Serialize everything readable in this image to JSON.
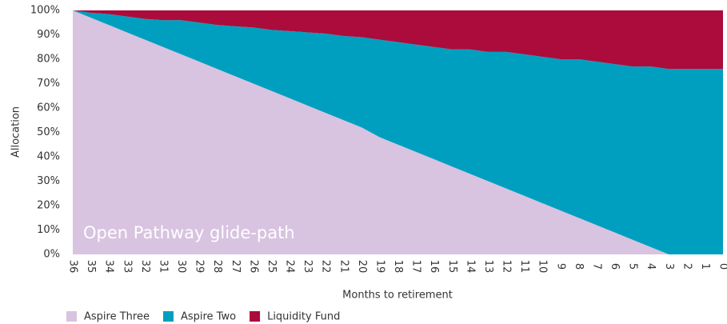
{
  "chart_data": {
    "type": "stacked-area",
    "annotation": "Open Pathway glide-path",
    "x_label": "Months to retirement",
    "y_label": "Allocation",
    "categories": [
      "36",
      "35",
      "34",
      "33",
      "32",
      "31",
      "30",
      "29",
      "28",
      "27",
      "26",
      "25",
      "24",
      "23",
      "22",
      "21",
      "20",
      "19",
      "18",
      "17",
      "16",
      "15",
      "14",
      "13",
      "12",
      "11",
      "10",
      "9",
      "8",
      "7",
      "6",
      "5",
      "4",
      "3",
      "2",
      "1",
      "0"
    ],
    "series": [
      {
        "name": "Aspire Three",
        "color": "#d8c3e0",
        "values": [
          100,
          97,
          94,
          91,
          88,
          85,
          82,
          79,
          76,
          73,
          70,
          67,
          64,
          61,
          58,
          55,
          52,
          48,
          45,
          42,
          39,
          36,
          33,
          30,
          27,
          24,
          21,
          18,
          15,
          12,
          9,
          6,
          3,
          0,
          0,
          0,
          0
        ]
      },
      {
        "name": "Aspire Two",
        "color": "#009fc0",
        "values": [
          0,
          2,
          4.5,
          6.5,
          8.5,
          11,
          14,
          16,
          18,
          20.5,
          23,
          25,
          27.5,
          30,
          32.5,
          34.5,
          37,
          40,
          42,
          44,
          46,
          48,
          51,
          53,
          56,
          58,
          60,
          62,
          65,
          67,
          69,
          71,
          74,
          76,
          76,
          76,
          76
        ]
      },
      {
        "name": "Liquidity Fund",
        "color": "#ab0c3c",
        "values": [
          0,
          1,
          1.5,
          2.5,
          3.5,
          4,
          4,
          5,
          6,
          6.5,
          7,
          8,
          8.5,
          9,
          9.5,
          10.5,
          11,
          12,
          13,
          14,
          15,
          16,
          16,
          17,
          17,
          18,
          19,
          20,
          20,
          21,
          22,
          23,
          23,
          24,
          24,
          24,
          24
        ]
      }
    ],
    "ylim": [
      0,
      100
    ],
    "yticks": [
      {
        "value": 0,
        "label": "0%"
      },
      {
        "value": 10,
        "label": "10%"
      },
      {
        "value": 20,
        "label": "20%"
      },
      {
        "value": 30,
        "label": "30%"
      },
      {
        "value": 40,
        "label": "40%"
      },
      {
        "value": 50,
        "label": "50%"
      },
      {
        "value": 60,
        "label": "60%"
      },
      {
        "value": 70,
        "label": "70%"
      },
      {
        "value": 80,
        "label": "80%"
      },
      {
        "value": 90,
        "label": "90%"
      },
      {
        "value": 100,
        "label": "100%"
      }
    ],
    "grid": false
  }
}
